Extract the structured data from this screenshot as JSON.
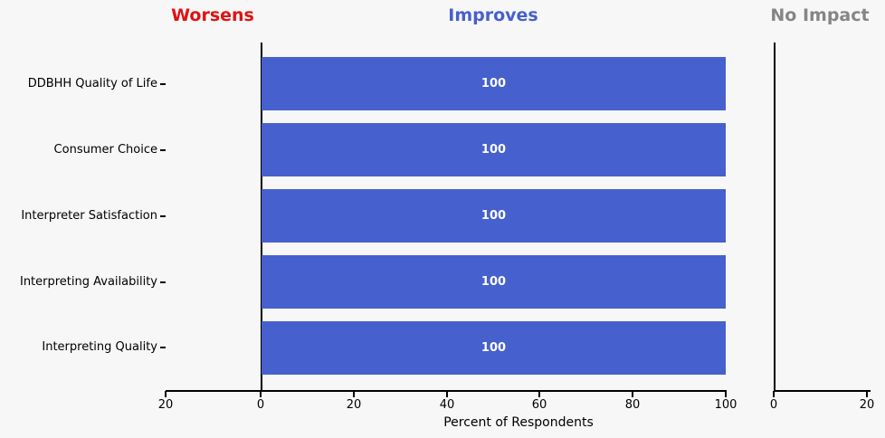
{
  "figure": {
    "background": "#f7f7f7",
    "spine_color": "#000000",
    "bar_label_color": "#ffffff"
  },
  "titles": [
    {
      "label": "Worsens",
      "color": "#e01212"
    },
    {
      "label": "Improves",
      "color": "#4660cd"
    },
    {
      "label": "No Impact",
      "color": "#858585"
    }
  ],
  "chart_data": {
    "type": "bar",
    "orientation": "horizontal",
    "panels": [
      "Worsens",
      "Improves",
      "No Impact"
    ],
    "categories": [
      "DDBHH Quality of Life",
      "Consumer Choice",
      "Interpreter Satisfaction",
      "Interpreting Availability",
      "Interpreting Quality"
    ],
    "series": [
      {
        "name": "Worsens",
        "values": [
          0,
          0,
          0,
          0,
          0
        ],
        "color": "#e01212",
        "xlim": [
          20,
          0
        ]
      },
      {
        "name": "Improves",
        "values": [
          100,
          100,
          100,
          100,
          100
        ],
        "color": "#4660cd",
        "xlim": [
          0,
          100
        ]
      },
      {
        "name": "No Impact",
        "values": [
          0,
          0,
          0,
          0,
          0
        ],
        "color": "#858585",
        "xlim": [
          0,
          20
        ]
      }
    ],
    "bar_value_labels": [
      "100",
      "100",
      "100",
      "100",
      "100"
    ],
    "xlabel": "Percent of Respondents",
    "xticks_main": [
      "20",
      "0",
      "20",
      "40",
      "60",
      "80",
      "100"
    ],
    "xticks_no_impact": [
      "0",
      "20"
    ],
    "grid": false
  }
}
